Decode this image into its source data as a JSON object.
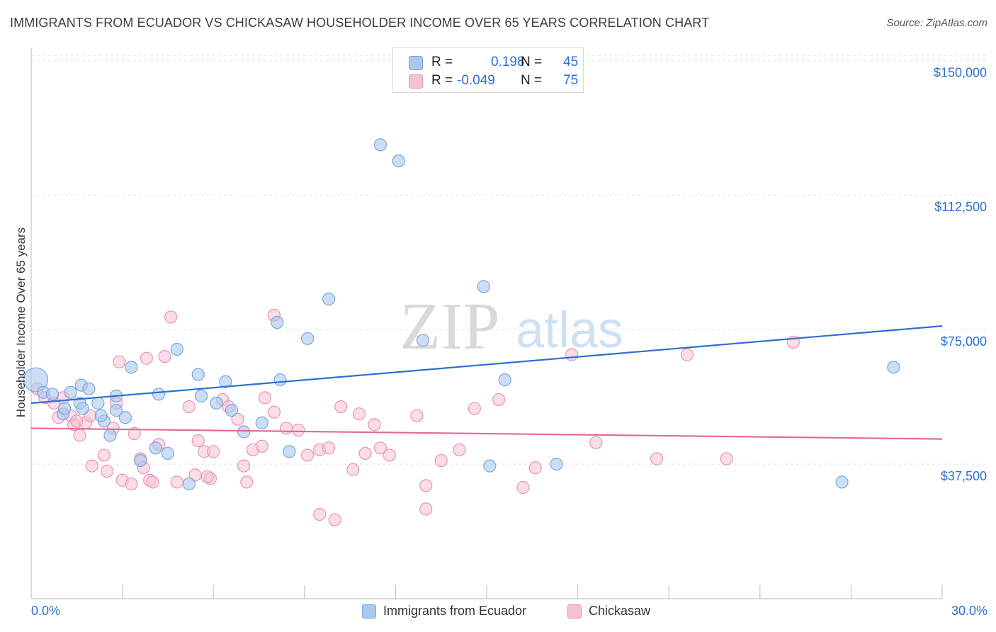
{
  "header": {
    "title": "IMMIGRANTS FROM ECUADOR VS CHICKASAW HOUSEHOLDER INCOME OVER 65 YEARS CORRELATION CHART",
    "source": "Source: ZipAtlas.com"
  },
  "watermark": {
    "zip": "ZIP",
    "atlas": "atlas"
  },
  "colors": {
    "blue_fill": "#aac8ee",
    "blue_stroke": "#7aa6dc",
    "blue_line": "#2b6fcf",
    "pink_fill": "#f6c1d3",
    "pink_stroke": "#ea93b3",
    "pink_line": "#e2679a",
    "accent_text": "#2d6fd1",
    "grid": "#e2e2e2"
  },
  "legend": {
    "series": [
      {
        "r_label": "R =",
        "r_value": "0.198",
        "n_label": "N =",
        "n_value": "45"
      },
      {
        "r_label": "R =",
        "r_value": "-0.049",
        "n_label": "N =",
        "n_value": "75"
      }
    ]
  },
  "chart_data": {
    "type": "scatter",
    "title": "IMMIGRANTS FROM ECUADOR VS CHICKASAW HOUSEHOLDER INCOME OVER 65 YEARS CORRELATION CHART",
    "xlabel": "",
    "ylabel": "Householder Income Over 65 years",
    "xlim": [
      0,
      30
    ],
    "ylim": [
      0,
      155000
    ],
    "x_tick_labels": [
      "0.0%",
      "30.0%"
    ],
    "y_ticks": [
      37500,
      75000,
      112500,
      150000
    ],
    "y_tick_labels": [
      "$37,500",
      "$75,000",
      "$112,500",
      "$150,000"
    ],
    "grid": true,
    "legend_position": "top-center",
    "series": [
      {
        "name": "Immigrants from Ecuador",
        "trend": {
          "x": [
            0,
            30
          ],
          "y": [
            54500,
            76000
          ]
        },
        "points": [
          [
            0.15,
            61000,
            "large"
          ],
          [
            0.4,
            57500
          ],
          [
            0.7,
            57000
          ],
          [
            1.05,
            51500
          ],
          [
            1.65,
            59500
          ],
          [
            1.9,
            58500
          ],
          [
            1.3,
            57500
          ],
          [
            1.6,
            54500
          ],
          [
            2.4,
            49500
          ],
          [
            2.8,
            52500
          ],
          [
            2.2,
            54500
          ],
          [
            2.8,
            56500
          ],
          [
            3.3,
            64500
          ],
          [
            2.6,
            45500
          ],
          [
            3.1,
            50500
          ],
          [
            4.1,
            42000
          ],
          [
            3.6,
            38500
          ],
          [
            4.2,
            57000
          ],
          [
            4.5,
            40500
          ],
          [
            5.2,
            32000
          ],
          [
            5.6,
            56500
          ],
          [
            5.5,
            62500
          ],
          [
            6.1,
            54500
          ],
          [
            6.4,
            60500
          ],
          [
            6.6,
            52500
          ],
          [
            7.0,
            46500
          ],
          [
            7.6,
            49000
          ],
          [
            8.1,
            77000
          ],
          [
            8.5,
            41000
          ],
          [
            9.1,
            72500
          ],
          [
            9.8,
            83500
          ],
          [
            11.5,
            126500
          ],
          [
            12.1,
            122000
          ],
          [
            12.9,
            72000
          ],
          [
            14.9,
            87000
          ],
          [
            15.1,
            37000
          ],
          [
            15.6,
            61000
          ],
          [
            17.3,
            37500
          ],
          [
            26.7,
            32500
          ],
          [
            28.4,
            64500
          ],
          [
            8.2,
            61000
          ],
          [
            4.8,
            69500
          ],
          [
            1.7,
            53000
          ],
          [
            2.3,
            51000
          ],
          [
            1.1,
            53000
          ]
        ]
      },
      {
        "name": "Chickasaw",
        "trend": {
          "x": [
            0,
            30
          ],
          "y": [
            47500,
            44500
          ]
        },
        "points": [
          [
            0.2,
            58500
          ],
          [
            0.45,
            56000
          ],
          [
            0.75,
            54500
          ],
          [
            1.05,
            56000
          ],
          [
            1.3,
            51000
          ],
          [
            1.4,
            48500
          ],
          [
            1.8,
            49000
          ],
          [
            1.95,
            51000
          ],
          [
            1.6,
            45500
          ],
          [
            2.0,
            37000
          ],
          [
            2.5,
            35500
          ],
          [
            2.4,
            40000
          ],
          [
            2.7,
            47500
          ],
          [
            2.8,
            54500
          ],
          [
            3.0,
            33000
          ],
          [
            3.4,
            46000
          ],
          [
            3.6,
            39000
          ],
          [
            3.7,
            36500
          ],
          [
            3.9,
            33000
          ],
          [
            4.2,
            43000
          ],
          [
            4.4,
            67500
          ],
          [
            4.6,
            78500
          ],
          [
            5.2,
            53500
          ],
          [
            5.4,
            34500
          ],
          [
            5.5,
            44000
          ],
          [
            5.7,
            41000
          ],
          [
            5.9,
            33500
          ],
          [
            6.3,
            55500
          ],
          [
            6.5,
            53500
          ],
          [
            6.8,
            50000
          ],
          [
            7.1,
            32500
          ],
          [
            7.3,
            41500
          ],
          [
            7.6,
            42500
          ],
          [
            8.0,
            79000
          ],
          [
            7.7,
            56000
          ],
          [
            8.0,
            52000
          ],
          [
            8.4,
            47500
          ],
          [
            8.8,
            47000
          ],
          [
            9.1,
            40000
          ],
          [
            9.5,
            41500
          ],
          [
            9.8,
            42000
          ],
          [
            10.2,
            53500
          ],
          [
            10.6,
            36000
          ],
          [
            10.8,
            51500
          ],
          [
            11.0,
            40500
          ],
          [
            11.3,
            48500
          ],
          [
            11.8,
            40000
          ],
          [
            12.7,
            51000
          ],
          [
            13.0,
            31500
          ],
          [
            13.5,
            38500
          ],
          [
            14.1,
            41500
          ],
          [
            14.6,
            53000
          ],
          [
            15.4,
            55500
          ],
          [
            16.2,
            31000
          ],
          [
            16.6,
            36500
          ],
          [
            17.8,
            68000
          ],
          [
            18.6,
            43500
          ],
          [
            20.6,
            39000
          ],
          [
            21.6,
            68000
          ],
          [
            22.9,
            39000
          ],
          [
            25.1,
            71500
          ],
          [
            9.5,
            23500
          ],
          [
            10.0,
            22000
          ],
          [
            13.0,
            25000
          ],
          [
            3.3,
            32000
          ],
          [
            4.0,
            32500
          ],
          [
            2.9,
            66000
          ],
          [
            3.8,
            67000
          ],
          [
            6.0,
            41000
          ],
          [
            7.0,
            37000
          ],
          [
            4.8,
            32500
          ],
          [
            11.5,
            42000
          ],
          [
            1.5,
            49500
          ],
          [
            0.9,
            50500
          ],
          [
            5.8,
            34000
          ]
        ]
      }
    ]
  },
  "bottom_legend": [
    {
      "label": "Immigrants from Ecuador"
    },
    {
      "label": "Chickasaw"
    }
  ]
}
